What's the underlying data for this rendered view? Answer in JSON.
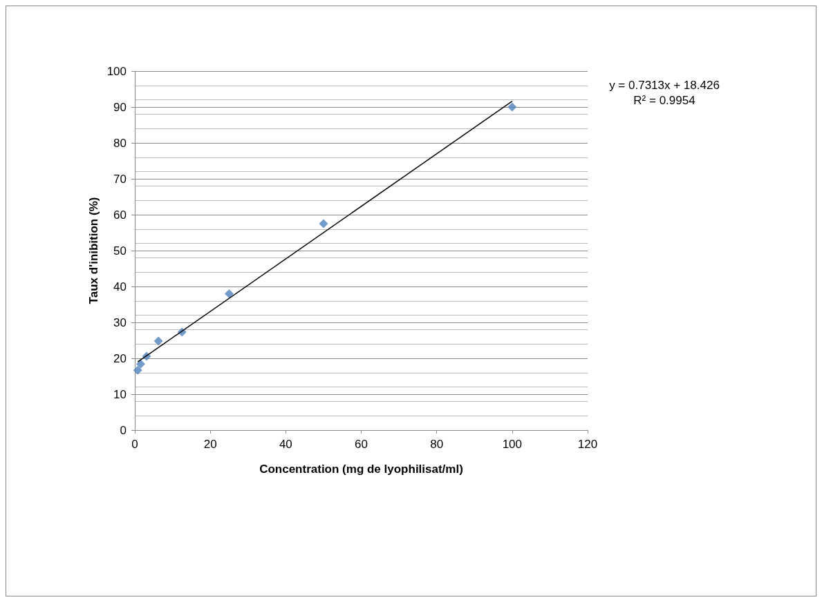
{
  "chart_data": {
    "type": "scatter",
    "xlabel": "Concentration (mg de lyophilisat/ml)",
    "ylabel": "Taux d'inibition (%)",
    "xlim": [
      0,
      120
    ],
    "xticks": [
      0,
      20,
      40,
      60,
      80,
      100,
      120
    ],
    "ylim": [
      0,
      100
    ],
    "yticks": [
      0,
      10,
      20,
      30,
      40,
      50,
      60,
      70,
      80,
      90,
      100
    ],
    "grid": "y",
    "marker": "diamond",
    "series": [
      {
        "type": "scatter",
        "color": "#4f81bd",
        "x": [
          0.78,
          1.56,
          3.125,
          6.25,
          12.5,
          25,
          50,
          100
        ],
        "values": [
          16.7,
          18.4,
          20.6,
          24.8,
          27.3,
          38.0,
          57.5,
          90.0
        ]
      },
      {
        "type": "line",
        "color": "#000000",
        "marker": "none",
        "x": [
          0.78,
          100
        ],
        "values": [
          19.0,
          91.6
        ]
      }
    ],
    "annotations": [
      "y = 0.7313x + 18.426",
      "R² = 0.9954"
    ]
  }
}
